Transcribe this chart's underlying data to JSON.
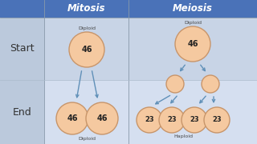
{
  "title_bg": "#4A72B8",
  "header_text_color": "#FFFFFF",
  "start_bg": "#C8D4E6",
  "end_bg": "#D8E2EE",
  "left_col_bg_start": "#C0CCDE",
  "left_col_bg_end": "#D0DCE8",
  "row_label_color": "#333333",
  "circle_fill": "#F5C9A0",
  "circle_edge": "#C8956A",
  "arrow_color": "#6090B8",
  "col1_label": "Mitosis",
  "col2_label": "Meiosis",
  "row1_label": "Start",
  "row2_label": "End"
}
